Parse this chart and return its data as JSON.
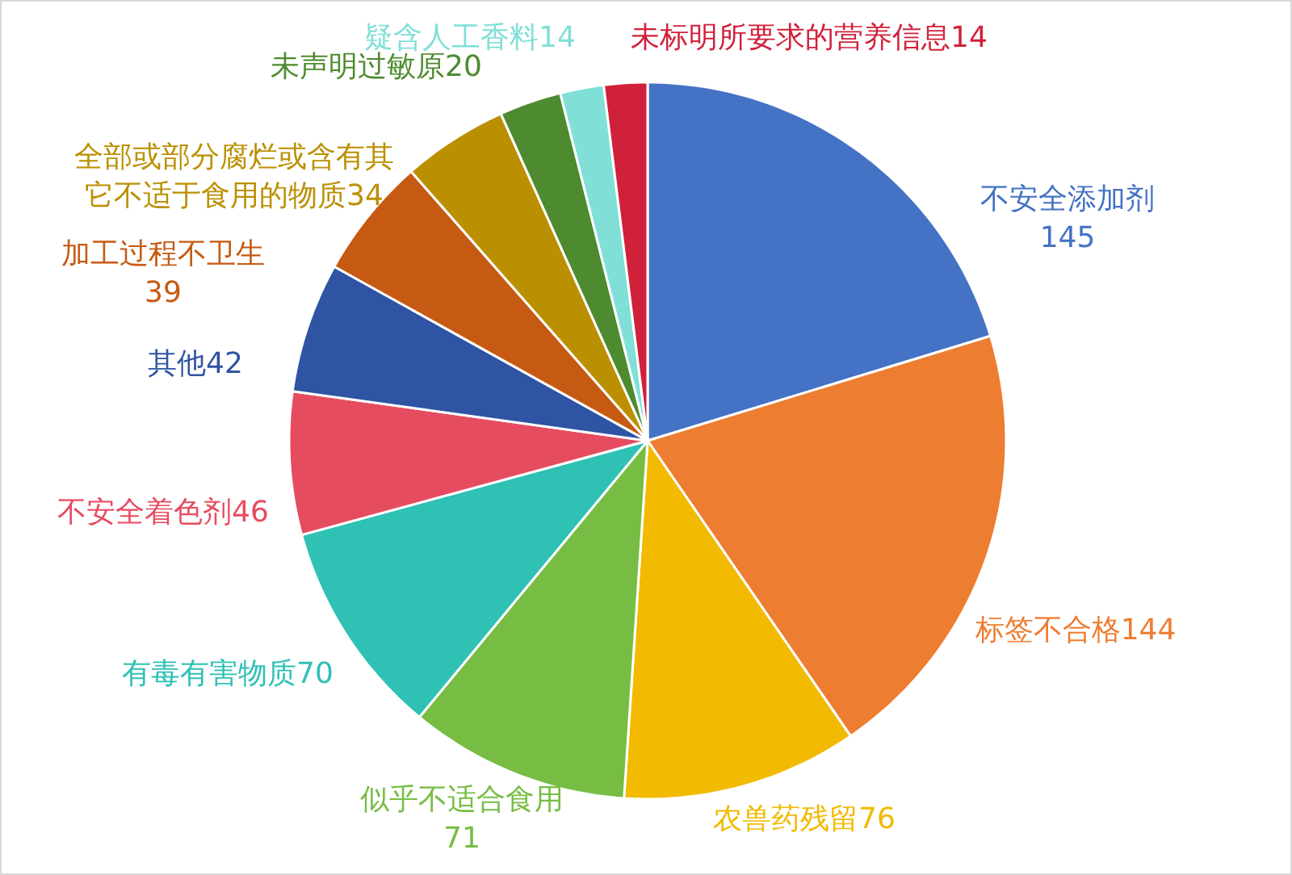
{
  "chart_data": {
    "type": "pie",
    "categories": [
      "不安全添加剂",
      "标签不合格",
      "农兽药残留",
      "似乎不适合食用",
      "有毒有害物质",
      "不安全着色剂",
      "其他",
      "加工过程不卫生",
      "全部或部分腐烂或含有其它不适于食用的物质",
      "未声明过敏原",
      "疑含人工香料",
      "未标明所要求的营养信息"
    ],
    "values": [
      145,
      144,
      76,
      71,
      70,
      46,
      42,
      39,
      34,
      20,
      14,
      14
    ],
    "colors": [
      "#4472c4",
      "#ed7d31",
      "#f2ba00",
      "#77bd44",
      "#2fc1b4",
      "#e64c60",
      "#2e54a3",
      "#c65a12",
      "#bb9000",
      "#4e8a2f",
      "#80e0d8",
      "#d0213b"
    ],
    "data_labels": true
  }
}
